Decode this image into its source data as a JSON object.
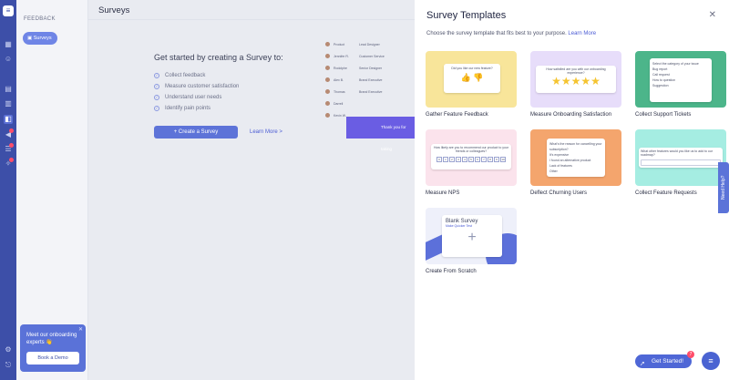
{
  "sidebar": {
    "section": "FEEDBACK",
    "active_item": "Surveys",
    "promo": {
      "text": "Meet our onboarding experts 👋",
      "button": "Book a Demo"
    }
  },
  "main": {
    "title": "Surveys",
    "hero": {
      "heading": "Get started by creating a Survey to:",
      "bullets": [
        "Collect feedback",
        "Measure customer satisfaction",
        "Understand user needs",
        "Identify pain points"
      ],
      "cta": "+ Create a Survey",
      "learn_more": "Learn More >"
    },
    "preview_rows": [
      {
        "c1": "Product",
        "c2": "Lead Designer"
      },
      {
        "c1": "Jennifer R.",
        "c2": "Customer Service"
      },
      {
        "c1": "Rodolphe",
        "c2": "Senior Designer"
      },
      {
        "c1": "Alex B.",
        "c2": "Brand Executive"
      },
      {
        "c1": "Thomas",
        "c2": "Brand Executive"
      },
      {
        "c1": "Darrell",
        "c2": ""
      },
      {
        "c1": "Kevin W.",
        "c2": ""
      }
    ],
    "preview_banner": "Thank you for taking"
  },
  "panel": {
    "title": "Survey Templates",
    "subtitle": "Choose the survey template that fits best to your purpose.",
    "subtitle_link": "Learn More",
    "templates": [
      {
        "label": "Gather Feature Feedback",
        "bg": "#f8e59a",
        "preview": "Did you like our new feature?"
      },
      {
        "label": "Measure Onboarding Satisfaction",
        "bg": "#e7ddfa",
        "preview": "How satisfied are you with our onboarding experience?"
      },
      {
        "label": "Collect Support Tickets",
        "bg": "#4cb58a",
        "preview": "Select the category of your issue"
      },
      {
        "label": "Measure NPS",
        "bg": "#fbe3ec",
        "preview": "How likely are you to recommend our product to your friends or colleagues?"
      },
      {
        "label": "Deflect Churning Users",
        "bg": "#f4a56d",
        "preview": "What's the reason for cancelling your subscription?"
      },
      {
        "label": "Collect Feature Requests",
        "bg": "#a5ede2",
        "preview": "What other features would you like us to add to our roadmap?"
      },
      {
        "label": "Create From Scratch",
        "bg": "#eef0fa",
        "preview": "Blank Survey"
      }
    ],
    "scratch_sub": "Make Quicker Test",
    "nps_scale": [
      "0",
      "1",
      "2",
      "3",
      "4",
      "5",
      "6",
      "7",
      "8",
      "9",
      "10"
    ],
    "ticket_options": [
      "Bug report",
      "Call request",
      "How to question",
      "Suggestion"
    ],
    "churn_options": [
      "It's expensive",
      "I found an alternative product",
      "Lack of features",
      "Other"
    ]
  },
  "need_help": "Need Help?",
  "get_started": {
    "label": "Get Started!",
    "badge": "7"
  }
}
